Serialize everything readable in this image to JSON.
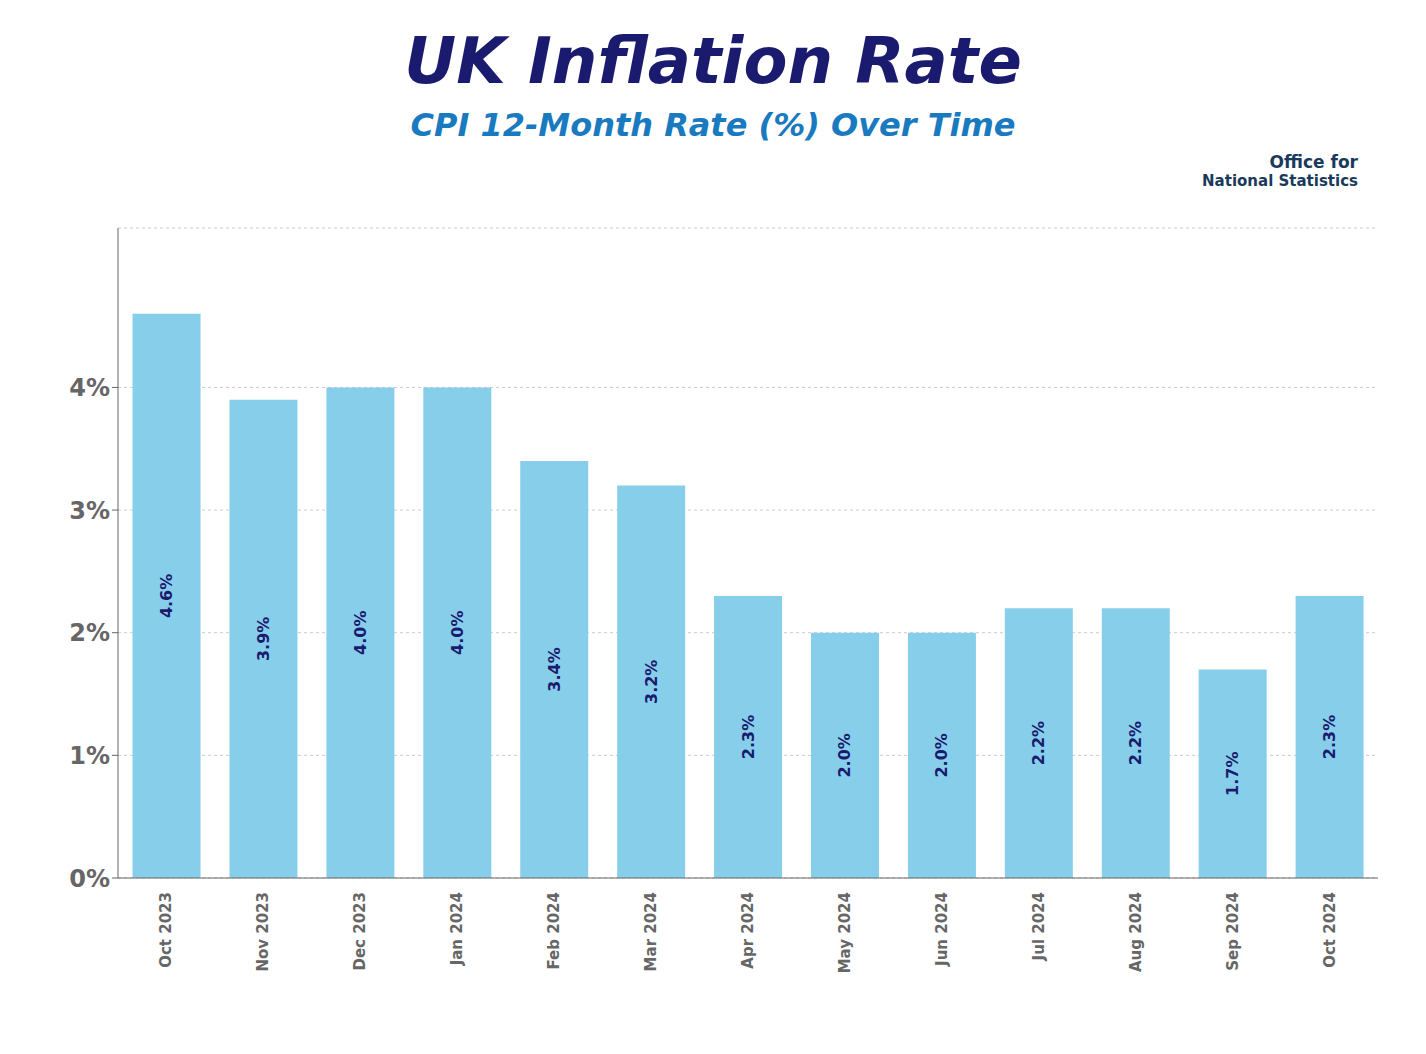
{
  "chart_data": {
    "type": "bar",
    "title": "UK Inflation Rate",
    "subtitle": "CPI 12-Month Rate (%) Over Time",
    "annotations": [
      "Office for",
      "National Statistics"
    ],
    "categories": [
      "Oct 2023",
      "Nov 2023",
      "Dec 2023",
      "Jan 2024",
      "Feb 2024",
      "Mar 2024",
      "Apr 2024",
      "May 2024",
      "Jun 2024",
      "Jul 2024",
      "Aug 2024",
      "Sep 2024",
      "Oct 2024"
    ],
    "values": [
      4.6,
      3.9,
      4.0,
      4.0,
      3.4,
      3.2,
      2.3,
      2.0,
      2.0,
      2.2,
      2.2,
      1.7,
      2.3
    ],
    "value_labels": [
      "4.6%",
      "3.9%",
      "4.0%",
      "4.0%",
      "3.4%",
      "3.2%",
      "2.3%",
      "2.0%",
      "2.0%",
      "2.2%",
      "2.2%",
      "1.7%",
      "2.3%"
    ],
    "data_labels": true,
    "color": "#87CEEB",
    "ylim": [
      0,
      5.3
    ],
    "yticks": [
      {
        "value": 0,
        "label": "0%"
      },
      {
        "value": 1,
        "label": "1%"
      },
      {
        "value": 2,
        "label": "2%"
      },
      {
        "value": 3,
        "label": "3%"
      },
      {
        "value": 4,
        "label": "4%"
      }
    ],
    "grid": true
  }
}
